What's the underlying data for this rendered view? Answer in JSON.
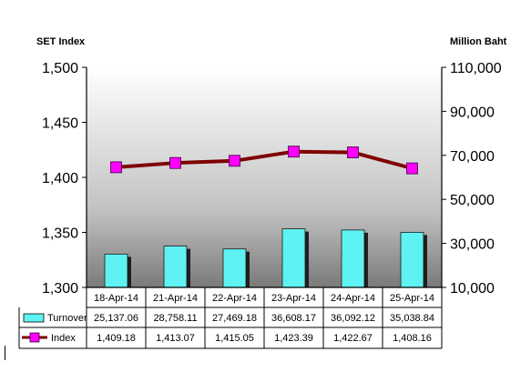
{
  "chart_data": {
    "type": "bar",
    "ylabel_left": "SET Index",
    "ylabel_right": "Million Baht",
    "categories": [
      "18-Apr-14",
      "21-Apr-14",
      "22-Apr-14",
      "23-Apr-14",
      "24-Apr-14",
      "25-Apr-14"
    ],
    "y_left": {
      "lim": [
        1300,
        1500
      ],
      "ticks": [
        "1,300",
        "1,350",
        "1,400",
        "1,450",
        "1,500"
      ],
      "tick_values": [
        1300,
        1350,
        1400,
        1450,
        1500
      ]
    },
    "y_right": {
      "lim": [
        10000,
        110000
      ],
      "ticks": [
        "10,000",
        "30,000",
        "50,000",
        "70,000",
        "90,000",
        "110,000"
      ],
      "tick_values": [
        10000,
        30000,
        50000,
        70000,
        90000,
        110000
      ]
    },
    "series": [
      {
        "name": "Turnover",
        "type": "bar",
        "axis": "right",
        "color": "#5FF2F2",
        "values": [
          25137.06,
          28758.11,
          27469.18,
          36608.17,
          36092.12,
          35038.84
        ],
        "labels": [
          "25,137.06",
          "28,758.11",
          "27,469.18",
          "36,608.17",
          "36,092.12",
          "35,038.84"
        ]
      },
      {
        "name": "Index",
        "type": "line",
        "axis": "left",
        "color": "#7F0000",
        "marker_color": "#FF00FF",
        "values": [
          1409.18,
          1413.07,
          1415.05,
          1423.39,
          1422.67,
          1408.16
        ],
        "labels": [
          "1,409.18",
          "1,413.07",
          "1,415.05",
          "1,423.39",
          "1,422.67",
          "1,408.16"
        ]
      }
    ],
    "grid": false,
    "legend": "data-table"
  }
}
